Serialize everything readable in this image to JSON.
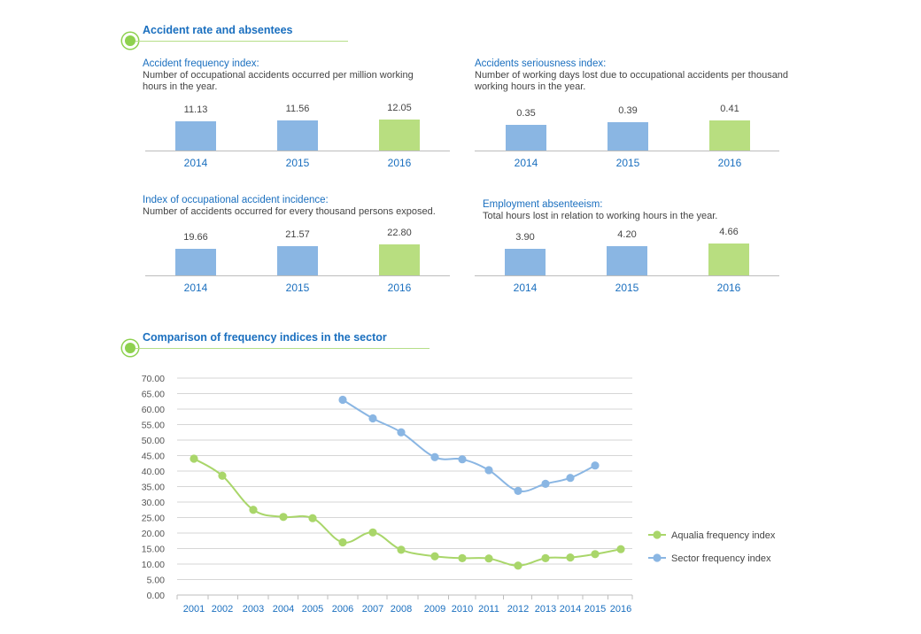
{
  "section1": {
    "title": "Accident rate and absentees"
  },
  "section2": {
    "title": "Comparison of frequency indices in the sector"
  },
  "colors": {
    "blue": "#8ab6e3",
    "green": "#b8de80",
    "title_blue": "#1a6fbf",
    "bullet_green": "#8ed14f"
  },
  "panels": [
    {
      "title": "Accident frequency index:",
      "description": "Number of occupational accidents occurred per million working hours in the year.",
      "desc_line1": "Number of occupational accidents occurred per million working",
      "desc_line2": "hours in the year.",
      "labels": [
        "11.13",
        "11.56",
        "12.05"
      ]
    },
    {
      "title": "Accidents seriousness index:",
      "description": "Number of working days lost due to occupational accidents per thousand working hours in the year.",
      "desc_line1": "Number of working days lost due to occupational accidents per thousand",
      "desc_line2": "working hours in the year.",
      "labels": [
        "0.35",
        "0.39",
        "0.41"
      ]
    },
    {
      "title": "Index of occupational accident incidence:",
      "description": "Number of accidents occurred for every thousand persons exposed.",
      "desc_line1": "Number of accidents occurred for every thousand persons exposed.",
      "desc_line2": "",
      "labels": [
        "19.66",
        "21.57",
        "22.80"
      ]
    },
    {
      "title": "Employment absenteeism:",
      "description": "Total hours lost in relation to working hours in the year.",
      "desc_line1": "Total hours lost in relation to working hours in the year.",
      "desc_line2": "",
      "labels": [
        "3.90",
        "4.20",
        "4.66"
      ]
    }
  ],
  "chart_data": [
    {
      "type": "bar",
      "title": "Accident frequency index:",
      "categories": [
        "2014",
        "2015",
        "2016"
      ],
      "values": [
        11.13,
        11.56,
        12.05
      ]
    },
    {
      "type": "bar",
      "title": "Accidents seriousness index:",
      "categories": [
        "2014",
        "2015",
        "2016"
      ],
      "values": [
        0.35,
        0.39,
        0.41
      ]
    },
    {
      "type": "bar",
      "title": "Index of occupational accident incidence:",
      "categories": [
        "2014",
        "2015",
        "2016"
      ],
      "values": [
        19.66,
        21.57,
        22.8
      ]
    },
    {
      "type": "bar",
      "title": "Employment absenteeism:",
      "categories": [
        "2014",
        "2015",
        "2016"
      ],
      "values": [
        3.9,
        4.2,
        4.66
      ]
    },
    {
      "type": "line",
      "title": "Comparison of frequency indices in the sector",
      "x": [
        "2001",
        "2002",
        "2003",
        "2004",
        "2005",
        "2006",
        "2007",
        "2008",
        "2009",
        "2010",
        "2011",
        "2012",
        "2013",
        "2014",
        "2015",
        "2016"
      ],
      "yticks": [
        "0.00",
        "5.00",
        "10.00",
        "15.00",
        "20.00",
        "25.00",
        "30.00",
        "35.00",
        "40.00",
        "45.00",
        "50.00",
        "55.00",
        "60.00",
        "65.00",
        "70.00"
      ],
      "ylim": [
        0,
        70
      ],
      "grid": true,
      "legend": "right",
      "series": [
        {
          "name": "Aqualia frequency index",
          "color": "#a9d66a",
          "values": [
            44.0,
            38.5,
            27.5,
            25.2,
            24.8,
            17.0,
            20.2,
            14.6,
            12.5,
            11.9,
            11.8,
            9.5,
            11.9,
            12.1,
            13.2,
            14.8
          ]
        },
        {
          "name": "Sector frequency index",
          "color": "#8ab6e3",
          "values": [
            null,
            null,
            null,
            null,
            null,
            63.0,
            57.0,
            52.5,
            44.5,
            43.8,
            40.3,
            33.6,
            35.9,
            37.8,
            41.8,
            null
          ]
        }
      ]
    }
  ]
}
